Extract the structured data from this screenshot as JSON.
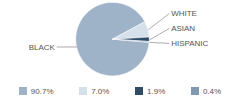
{
  "chart_data": {
    "type": "pie",
    "categories": [
      "BLACK",
      "WHITE",
      "ASIAN",
      "HISPANIC"
    ],
    "values": [
      90.7,
      7.0,
      1.9,
      0.4
    ],
    "value_labels": [
      "90.7%",
      "7.0%",
      "1.9%",
      "0.4%"
    ],
    "colors": [
      "#9fb3c8",
      "#d6e0ea",
      "#2f4b68",
      "#7f99b3"
    ],
    "legend": "bottom"
  }
}
